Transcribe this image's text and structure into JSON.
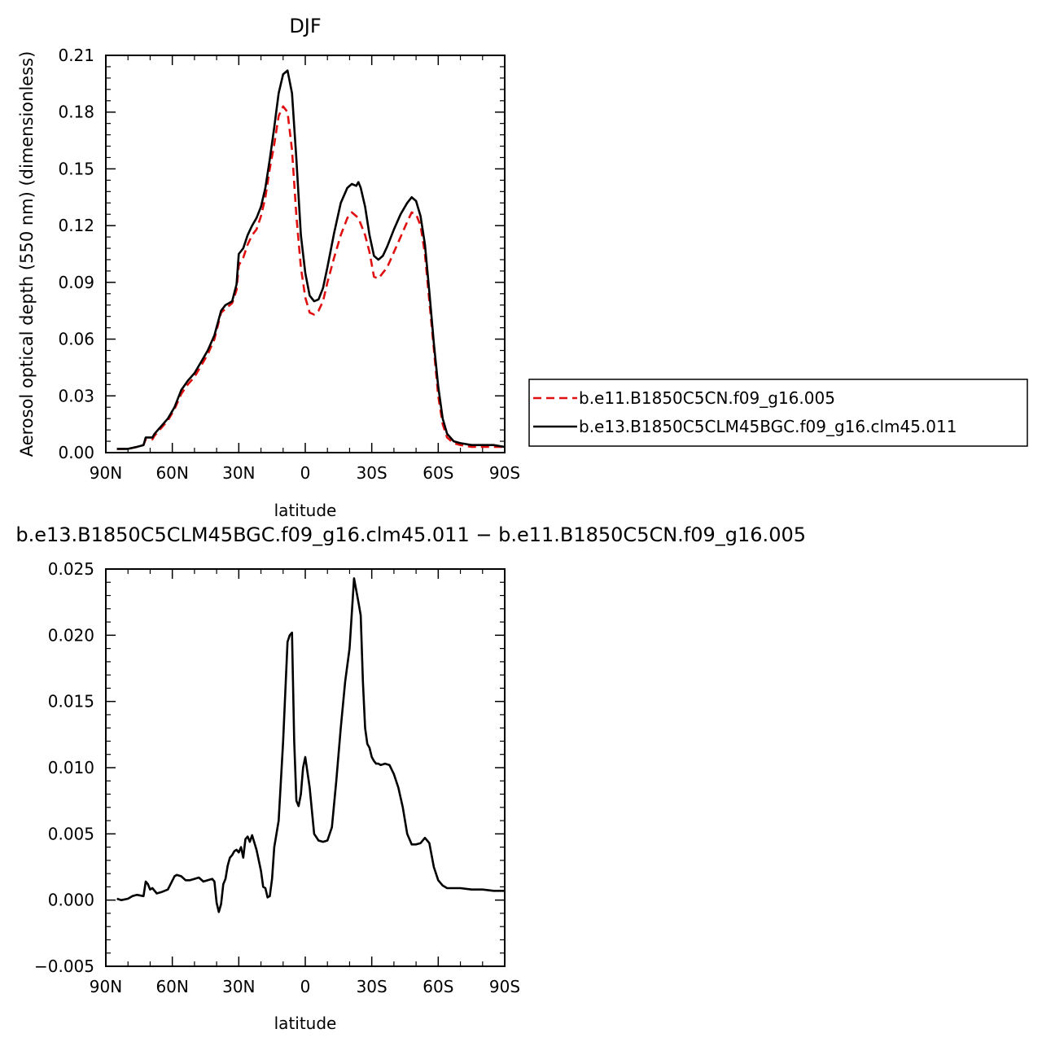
{
  "chart_data": [
    {
      "type": "line",
      "title": "DJF",
      "xlabel": "latitude",
      "ylabel": "Aerosol optical depth (550 nm) (dimensionless)",
      "xlim": [
        90,
        -90
      ],
      "ylim": [
        0.0,
        0.21
      ],
      "x_ticks": [
        90,
        60,
        30,
        0,
        -30,
        -60,
        -90
      ],
      "x_tick_labels": [
        "90N",
        "60N",
        "30N",
        "0",
        "30S",
        "60S",
        "90S"
      ],
      "y_ticks": [
        0.0,
        0.03,
        0.06,
        0.09,
        0.12,
        0.15,
        0.18,
        0.21
      ],
      "y_tick_labels": [
        "0.00",
        "0.03",
        "0.06",
        "0.09",
        "0.12",
        "0.15",
        "0.18",
        "0.21"
      ],
      "legend_position": "right",
      "series": [
        {
          "name": "b.e11.B1850C5CN.f09_g16.005",
          "color": "#e01010",
          "dash": "dashed",
          "x": [
            85,
            80,
            76,
            73,
            72,
            69,
            68,
            65,
            62,
            59,
            56,
            53,
            50,
            47,
            44,
            41,
            38,
            36,
            33,
            31,
            30,
            28,
            26,
            24,
            22,
            20,
            18,
            16,
            14,
            12,
            10,
            8,
            6,
            4,
            2,
            0,
            -2,
            -4,
            -6,
            -8,
            -10,
            -13,
            -16,
            -19,
            -21,
            -24,
            -27,
            -29,
            -31,
            -33,
            -35,
            -37,
            -40,
            -43,
            -46,
            -48,
            -50,
            -52,
            -54,
            -56,
            -58,
            -60,
            -62,
            -64,
            -67,
            -70,
            -75,
            -80,
            -85,
            -90
          ],
          "y": [
            0.002,
            0.002,
            0.003,
            0.004,
            0.007,
            0.007,
            0.009,
            0.013,
            0.017,
            0.023,
            0.031,
            0.036,
            0.04,
            0.046,
            0.052,
            0.06,
            0.074,
            0.076,
            0.079,
            0.086,
            0.099,
            0.103,
            0.11,
            0.115,
            0.118,
            0.125,
            0.135,
            0.15,
            0.163,
            0.178,
            0.183,
            0.18,
            0.16,
            0.125,
            0.098,
            0.082,
            0.074,
            0.073,
            0.075,
            0.08,
            0.09,
            0.103,
            0.115,
            0.124,
            0.127,
            0.124,
            0.115,
            0.106,
            0.093,
            0.092,
            0.095,
            0.098,
            0.106,
            0.114,
            0.122,
            0.127,
            0.126,
            0.12,
            0.105,
            0.08,
            0.055,
            0.03,
            0.015,
            0.008,
            0.005,
            0.004,
            0.003,
            0.003,
            0.003,
            0.003
          ]
        },
        {
          "name": "b.e13.B1850C5CLM45BGC.f09_g16.clm45.011",
          "color": "#000000",
          "dash": "solid",
          "x": [
            85,
            80,
            76,
            73,
            72,
            69,
            68,
            65,
            62,
            59,
            56,
            53,
            50,
            47,
            44,
            41,
            38,
            36,
            33,
            31,
            30,
            28,
            26,
            24,
            22,
            20,
            18,
            16,
            14,
            12,
            10,
            8,
            6,
            4,
            2,
            0,
            -2,
            -4,
            -6,
            -8,
            -10,
            -13,
            -16,
            -19,
            -21,
            -23,
            -24,
            -25,
            -27,
            -29,
            -31,
            -33,
            -35,
            -37,
            -40,
            -43,
            -46,
            -48,
            -50,
            -52,
            -54,
            -56,
            -58,
            -60,
            -62,
            -64,
            -67,
            -70,
            -75,
            -80,
            -85,
            -90
          ],
          "y": [
            0.002,
            0.002,
            0.003,
            0.004,
            0.008,
            0.008,
            0.01,
            0.014,
            0.018,
            0.024,
            0.033,
            0.038,
            0.042,
            0.048,
            0.054,
            0.062,
            0.075,
            0.078,
            0.08,
            0.089,
            0.105,
            0.108,
            0.115,
            0.12,
            0.124,
            0.13,
            0.14,
            0.155,
            0.172,
            0.19,
            0.2,
            0.202,
            0.19,
            0.155,
            0.115,
            0.095,
            0.083,
            0.08,
            0.081,
            0.087,
            0.098,
            0.116,
            0.132,
            0.14,
            0.142,
            0.141,
            0.143,
            0.14,
            0.13,
            0.115,
            0.104,
            0.102,
            0.104,
            0.109,
            0.118,
            0.126,
            0.132,
            0.135,
            0.133,
            0.125,
            0.11,
            0.085,
            0.058,
            0.035,
            0.018,
            0.01,
            0.006,
            0.005,
            0.004,
            0.004,
            0.004,
            0.003
          ]
        }
      ]
    },
    {
      "type": "line",
      "title": "b.e13.B1850C5CLM45BGC.f09_g16.clm45.011 − b.e11.B1850C5CN.f09_g16.005",
      "xlabel": "latitude",
      "ylabel": "",
      "xlim": [
        90,
        -90
      ],
      "ylim": [
        -0.005,
        0.025
      ],
      "x_ticks": [
        90,
        60,
        30,
        0,
        -30,
        -60,
        -90
      ],
      "x_tick_labels": [
        "90N",
        "60N",
        "30N",
        "0",
        "30S",
        "60S",
        "90S"
      ],
      "y_ticks": [
        -0.005,
        0.0,
        0.005,
        0.01,
        0.015,
        0.02,
        0.025
      ],
      "y_tick_labels": [
        "−0.005",
        "0.000",
        "0.005",
        "0.010",
        "0.015",
        "0.020",
        "0.025"
      ],
      "series": [
        {
          "color": "#000000",
          "dash": "solid",
          "x": [
            85,
            83,
            80,
            78,
            76,
            73,
            72,
            71,
            70,
            69,
            67,
            65,
            62,
            59,
            58,
            56,
            54,
            52,
            50,
            48,
            46,
            44,
            42,
            41,
            40,
            39,
            38,
            37,
            36,
            35,
            34,
            33,
            32,
            31,
            30,
            29,
            28,
            27,
            26,
            25,
            24,
            22,
            20,
            19,
            18,
            17,
            16,
            15,
            14,
            12,
            10,
            8,
            7,
            6,
            5,
            4,
            3,
            2,
            1,
            0,
            -2,
            -4,
            -6,
            -8,
            -10,
            -12,
            -14,
            -16,
            -18,
            -20,
            -22,
            -24,
            -25,
            -26,
            -27,
            -28,
            -29,
            -30,
            -31,
            -32,
            -33,
            -34,
            -36,
            -38,
            -40,
            -42,
            -44,
            -46,
            -48,
            -50,
            -52,
            -54,
            -56,
            -58,
            -60,
            -62,
            -64,
            -66,
            -68,
            -70,
            -75,
            -80,
            -85,
            -90
          ],
          "y": [
            0.0001,
            0.0,
            0.0001,
            0.0003,
            0.0004,
            0.0003,
            0.0014,
            0.0012,
            0.0008,
            0.0009,
            0.0005,
            0.0006,
            0.0008,
            0.0018,
            0.0019,
            0.0018,
            0.0015,
            0.0015,
            0.0016,
            0.0017,
            0.0014,
            0.0015,
            0.0016,
            0.0014,
            -0.0002,
            -0.0009,
            -0.0003,
            0.0012,
            0.0016,
            0.0026,
            0.0032,
            0.0034,
            0.0037,
            0.0038,
            0.0036,
            0.004,
            0.0032,
            0.0046,
            0.0048,
            0.0044,
            0.0049,
            0.0038,
            0.0022,
            0.001,
            0.0009,
            0.0002,
            0.0003,
            0.0016,
            0.004,
            0.006,
            0.012,
            0.0195,
            0.02,
            0.0202,
            0.012,
            0.0075,
            0.0071,
            0.008,
            0.01,
            0.0108,
            0.0085,
            0.005,
            0.0045,
            0.0044,
            0.0045,
            0.0055,
            0.009,
            0.013,
            0.0165,
            0.019,
            0.0243,
            0.0225,
            0.0215,
            0.0165,
            0.013,
            0.0118,
            0.0115,
            0.0108,
            0.0105,
            0.0103,
            0.0103,
            0.0102,
            0.0103,
            0.0102,
            0.0095,
            0.0085,
            0.007,
            0.005,
            0.0042,
            0.0042,
            0.0043,
            0.0047,
            0.0043,
            0.0025,
            0.0015,
            0.0011,
            0.0009,
            0.0009,
            0.0009,
            0.0009,
            0.0008,
            0.0008,
            0.0007,
            0.0007
          ]
        }
      ]
    }
  ]
}
